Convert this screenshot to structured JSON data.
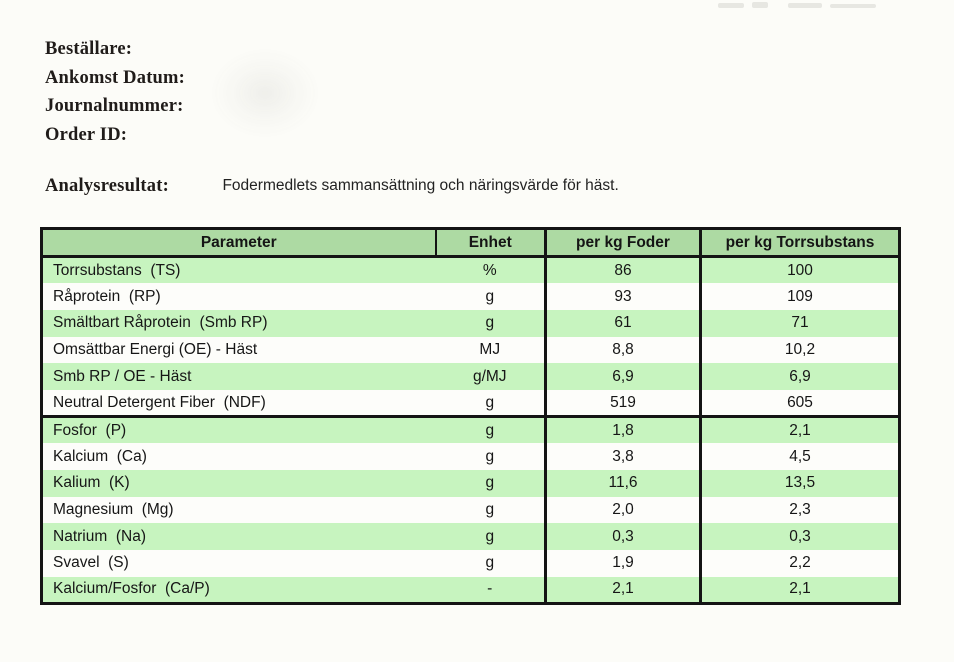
{
  "header_fields": [
    {
      "label": "Beställare:"
    },
    {
      "label": "Ankomst Datum:"
    },
    {
      "label": "Journalnummer:"
    },
    {
      "label": "Order ID:"
    }
  ],
  "analysis": {
    "label": "Analysresultat:",
    "description": "Fodermedlets sammansättning och näringsvärde för häst."
  },
  "table": {
    "columns": [
      "Parameter",
      "Enhet",
      "per kg Foder",
      "per kg Torrsubstans"
    ],
    "rows": [
      {
        "parameter": "Torrsubstans  (TS)",
        "unit": "%",
        "per_kg_foder": "86",
        "per_kg_torrsubstans": "100",
        "section": 1
      },
      {
        "parameter": "Råprotein  (RP)",
        "unit": "g",
        "per_kg_foder": "93",
        "per_kg_torrsubstans": "109",
        "section": 1
      },
      {
        "parameter": "Smältbart Råprotein  (Smb RP)",
        "unit": "g",
        "per_kg_foder": "61",
        "per_kg_torrsubstans": "71",
        "section": 1
      },
      {
        "parameter": "Omsättbar Energi (OE) - Häst",
        "unit": "MJ",
        "per_kg_foder": "8,8",
        "per_kg_torrsubstans": "10,2",
        "section": 1
      },
      {
        "parameter": "Smb RP / OE - Häst",
        "unit": "g/MJ",
        "per_kg_foder": "6,9",
        "per_kg_torrsubstans": "6,9",
        "section": 1
      },
      {
        "parameter": "Neutral Detergent Fiber  (NDF)",
        "unit": "g",
        "per_kg_foder": "519",
        "per_kg_torrsubstans": "605",
        "section": 1
      },
      {
        "parameter": "Fosfor  (P)",
        "unit": "g",
        "per_kg_foder": "1,8",
        "per_kg_torrsubstans": "2,1",
        "section": 2
      },
      {
        "parameter": "Kalcium  (Ca)",
        "unit": "g",
        "per_kg_foder": "3,8",
        "per_kg_torrsubstans": "4,5",
        "section": 2
      },
      {
        "parameter": "Kalium  (K)",
        "unit": "g",
        "per_kg_foder": "11,6",
        "per_kg_torrsubstans": "13,5",
        "section": 2
      },
      {
        "parameter": "Magnesium  (Mg)",
        "unit": "g",
        "per_kg_foder": "2,0",
        "per_kg_torrsubstans": "2,3",
        "section": 2
      },
      {
        "parameter": "Natrium  (Na)",
        "unit": "g",
        "per_kg_foder": "0,3",
        "per_kg_torrsubstans": "0,3",
        "section": 2
      },
      {
        "parameter": "Svavel  (S)",
        "unit": "g",
        "per_kg_foder": "1,9",
        "per_kg_torrsubstans": "2,2",
        "section": 2
      },
      {
        "parameter": "Kalcium/Fosfor  (Ca/P)",
        "unit": "-",
        "per_kg_foder": "2,1",
        "per_kg_torrsubstans": "2,1",
        "section": 2
      }
    ],
    "colors": {
      "header_bg": "#addaa3",
      "row_green": "#c7f4bf",
      "row_white": "#fdfdfa",
      "border": "#141414"
    }
  }
}
